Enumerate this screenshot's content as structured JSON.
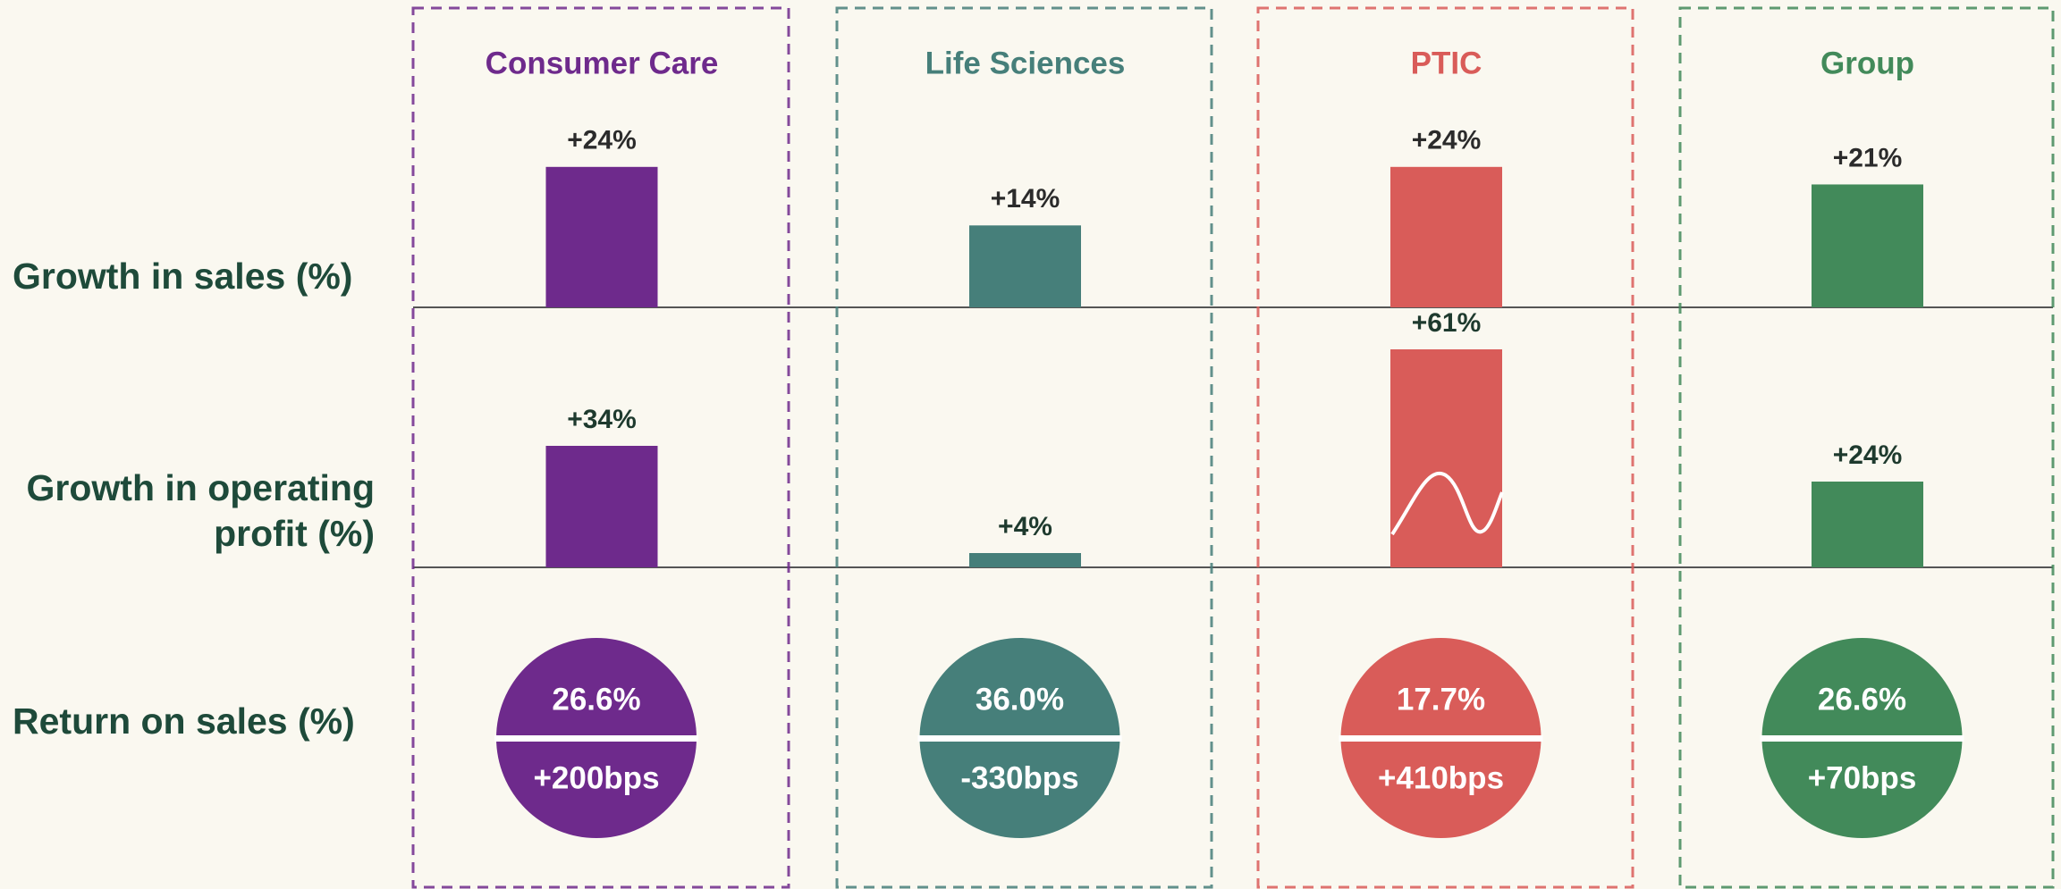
{
  "row_labels": {
    "sales": "Growth in sales (%)",
    "profit": [
      "Growth in operating",
      "profit (%)"
    ],
    "return": "Return on sales (%)"
  },
  "segments": [
    {
      "name": "Consumer Care",
      "color": "#6e2a8c",
      "sales_growth": 24,
      "sales_label": "+24%",
      "profit_growth": 34,
      "profit_label": "+34%",
      "return_on_sales": 26.6,
      "return_label": "26.6%",
      "change_bps": 200,
      "change_label": "+200bps"
    },
    {
      "name": "Life Sciences",
      "color": "#467f7a",
      "sales_growth": 14,
      "sales_label": "+14%",
      "profit_growth": 4,
      "profit_label": "+4%",
      "return_on_sales": 36.0,
      "return_label": "36.0%",
      "change_bps": -330,
      "change_label": "-330bps"
    },
    {
      "name": "PTIC",
      "color": "#d95c59",
      "sales_growth": 24,
      "sales_label": "+24%",
      "profit_growth": 61,
      "profit_label": "+61%",
      "return_on_sales": 17.7,
      "return_label": "17.7%",
      "change_bps": 410,
      "change_label": "+410bps"
    },
    {
      "name": "Group",
      "color": "#428a5a",
      "sales_growth": 21,
      "sales_label": "+21%",
      "profit_growth": 24,
      "profit_label": "+24%",
      "return_on_sales": 26.6,
      "return_label": "26.6%",
      "change_bps": 70,
      "change_label": "+70bps"
    }
  ]
}
